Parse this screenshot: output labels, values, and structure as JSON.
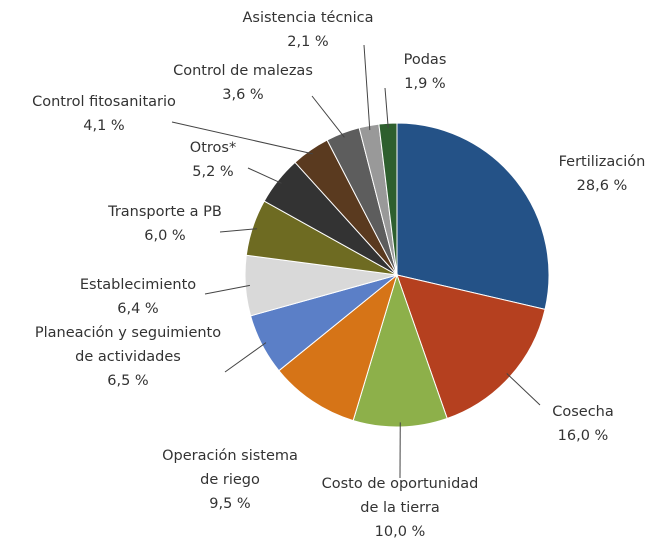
{
  "chart_data": {
    "type": "pie",
    "categories": [
      "Fertilización",
      "Cosecha",
      "Costo de oportunidad\nde la tierra",
      "Operación sistema\nde riego",
      "Planeación y seguimiento\nde actividades",
      "Establecimiento",
      "Transporte a PB",
      "Otros*",
      "Control fitosanitario",
      "Control de malezas",
      "Asistencia técnica",
      "Podas"
    ],
    "values": [
      28.6,
      16.0,
      10.0,
      9.5,
      6.5,
      6.4,
      6.0,
      5.2,
      4.1,
      3.6,
      2.1,
      1.9
    ],
    "value_labels": [
      "28,6 %",
      "16,0 %",
      "10,0 %",
      "9,5 %",
      "6,5 %",
      "6,4 %",
      "6,0 %",
      "5,2 %",
      "4,1 %",
      "3,6 %",
      "2,1 %",
      "1,9 %"
    ],
    "colors": [
      "#245287",
      "#b5401f",
      "#8db04a",
      "#d67417",
      "#5b7fc7",
      "#d9d9d9",
      "#6e6b22",
      "#333333",
      "#5a3a1f",
      "#5d5d5d",
      "#999999",
      "#2e5f2e"
    ]
  }
}
